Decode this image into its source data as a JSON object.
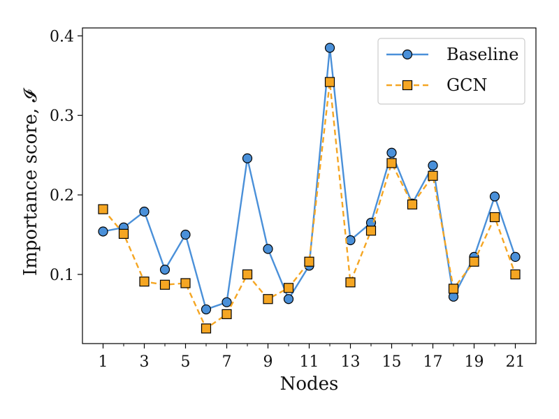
{
  "chart_data": {
    "type": "line",
    "xlabel": "Nodes",
    "ylabel": "Importance score, 𝓘",
    "xlim": [
      0,
      22
    ],
    "ylim": [
      0.013,
      0.41
    ],
    "x_ticks": [
      1,
      3,
      5,
      7,
      9,
      11,
      13,
      15,
      17,
      19,
      21
    ],
    "x_minor_ticks": [
      2,
      4,
      6,
      8,
      10,
      12,
      14,
      16,
      18,
      20
    ],
    "y_ticks": [
      0.1,
      0.2,
      0.3,
      0.4
    ],
    "y_tick_labels": [
      "0.1",
      "0.2",
      "0.3",
      "0.4"
    ],
    "grid": false,
    "legend_position": "top-right",
    "x": [
      1,
      2,
      3,
      4,
      5,
      6,
      7,
      8,
      9,
      10,
      11,
      12,
      13,
      14,
      15,
      16,
      17,
      18,
      19,
      20,
      21
    ],
    "series": [
      {
        "name": "Baseline",
        "color": "#4a90d9",
        "marker": "circle",
        "line_style": "solid",
        "values": [
          0.154,
          0.159,
          0.179,
          0.106,
          0.15,
          0.056,
          0.065,
          0.246,
          0.132,
          0.069,
          0.111,
          0.385,
          0.143,
          0.165,
          0.253,
          0.189,
          0.237,
          0.072,
          0.122,
          0.198,
          0.122
        ]
      },
      {
        "name": "GCN",
        "color": "#f5a623",
        "marker": "square",
        "line_style": "dashed",
        "values": [
          0.182,
          0.151,
          0.091,
          0.087,
          0.089,
          0.032,
          0.05,
          0.1,
          0.069,
          0.083,
          0.116,
          0.342,
          0.09,
          0.155,
          0.24,
          0.188,
          0.224,
          0.082,
          0.116,
          0.172,
          0.1
        ]
      }
    ]
  }
}
